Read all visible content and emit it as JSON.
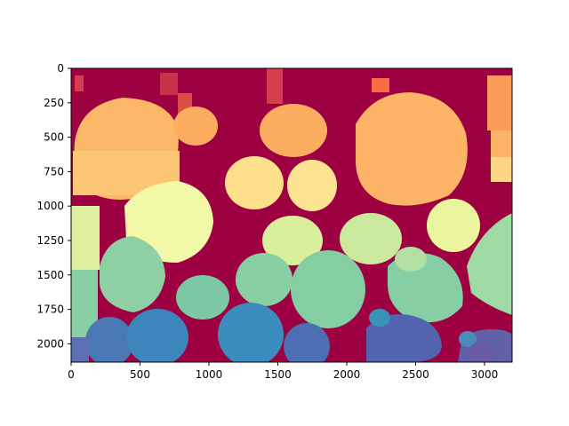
{
  "figure": {
    "x_axis": {
      "ticks": [
        "0",
        "500",
        "1000",
        "1500",
        "2000",
        "2500",
        "3000"
      ],
      "range": [
        0,
        3200
      ]
    },
    "y_axis": {
      "ticks": [
        "0",
        "250",
        "500",
        "750",
        "1000",
        "1250",
        "1500",
        "1750",
        "2000"
      ],
      "range_top_to_bottom": [
        0,
        2130
      ],
      "inverted": true
    },
    "colormap": "Spectral",
    "colors": {
      "background": "#9e0142",
      "axis": "#000000"
    },
    "segments_description": "Segmented image: colored blobs on a dark-red background"
  }
}
